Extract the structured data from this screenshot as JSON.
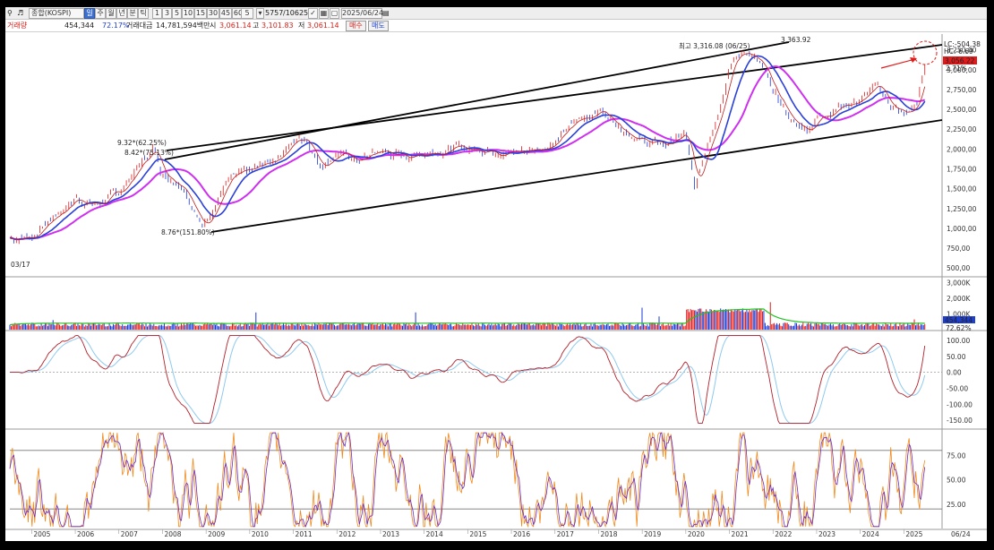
{
  "toolbar": {
    "search_icon": "magnifier-icon",
    "sound_icon": "speaker-icon",
    "market_label": "종합(KOSPI)",
    "period_tabs": [
      "일",
      "주",
      "월",
      "년",
      "분",
      "틱"
    ],
    "interval_buttons": [
      "1",
      "3",
      "5",
      "10",
      "15",
      "30",
      "45",
      "60"
    ],
    "field_value": "5",
    "count_value": "5757",
    "count_total": "/10625",
    "date_value": "2025/06/24"
  },
  "info": {
    "volume_label": "거래량",
    "volume_value": "454,344",
    "volume_pct": "72.17%",
    "amount_label": "거래대금",
    "amount_value": "14,781,594백만",
    "open_label": "시",
    "open_value": "3,061.14",
    "high_label": "고",
    "high_value": "3,101.83",
    "low_label": "저",
    "low_value": "3,061.14",
    "buy_button": "매수",
    "sell_button": "매도"
  },
  "annotations": {
    "pct1": "9.32*(62.25%)",
    "pct2": "8.42*(75.13%)",
    "pct3": "8.76*(151.80%)",
    "high_label": "최고 3,316.08 (06/25)",
    "channel_top": "3,363.92",
    "start_date": "03/17",
    "lc": "LC:-504.38",
    "hc": "HC:-6.69",
    "price_tag": "3,056.22",
    "pct_tag": "2.71%",
    "vol_tag": "454,344",
    "vol_pct_tag": "72.62%"
  },
  "chart_data": [
    {
      "type": "line",
      "panel": "price",
      "x": [
        2004.5,
        2005,
        2005.5,
        2006,
        2006.5,
        2007,
        2007.5,
        2007.8,
        2008,
        2008.5,
        2008.9,
        2009,
        2009.5,
        2010,
        2010.5,
        2011,
        2011.3,
        2011.6,
        2012,
        2012.5,
        2013,
        2013.5,
        2014,
        2014.5,
        2015,
        2015.5,
        2016,
        2016.5,
        2017,
        2017.5,
        2018,
        2018.5,
        2019,
        2019.5,
        2020,
        2020.2,
        2020.5,
        2020.8,
        2021,
        2021.4,
        2021.7,
        2022,
        2022.5,
        2022.8,
        2023,
        2023.5,
        2024,
        2024.4,
        2024.7,
        2025,
        2025.3,
        2025.48
      ],
      "series": [
        {
          "values": [
            880,
            900,
            1150,
            1380,
            1300,
            1450,
            1820,
            2010,
            1700,
            1550,
            1000,
            1120,
            1600,
            1700,
            1850,
            2100,
            2160,
            1800,
            1950,
            1850,
            1980,
            1900,
            1960,
            2010,
            2000,
            2020,
            1960,
            2000,
            2100,
            2350,
            2500,
            2300,
            2100,
            2050,
            2180,
            1460,
            2100,
            2600,
            3100,
            3250,
            3050,
            2700,
            2300,
            2250,
            2400,
            2550,
            2620,
            2780,
            2550,
            2420,
            2550,
            3056
          ]
        }
      ],
      "ylabel_ticks": [
        "3,250,00",
        "3,000,00",
        "2,750,00",
        "2,500,00",
        "2,250,00",
        "2,000,00",
        "1,750,00",
        "1,500,00",
        "1,250,00",
        "1,000,00",
        "750,00",
        "500,00"
      ],
      "ylim": [
        400,
        3450
      ]
    },
    {
      "type": "bar",
      "panel": "volume",
      "ylabel_ticks": [
        "3,000K",
        "2,000K",
        "1,000K"
      ],
      "ylim": [
        0,
        3300
      ]
    },
    {
      "type": "line",
      "panel": "oscillator",
      "ylabel_ticks": [
        "100.00",
        "50.00",
        "0.00",
        "-50.00",
        "-100.00",
        "-150.00"
      ],
      "ylim": [
        -175,
        125
      ]
    },
    {
      "type": "line",
      "panel": "stochastic",
      "ylabel_ticks": [
        "75.00",
        "50.00",
        "25.00"
      ],
      "ylim": [
        0,
        100
      ]
    }
  ],
  "x_axis_labels": [
    "2005",
    "2006",
    "2007",
    "2008",
    "2009",
    "2010",
    "2011",
    "2012",
    "2013",
    "2014",
    "2015",
    "2016",
    "2017",
    "2018",
    "2019",
    "2020",
    "2021",
    "2022",
    "2023",
    "2024",
    "2025",
    "06/24"
  ]
}
